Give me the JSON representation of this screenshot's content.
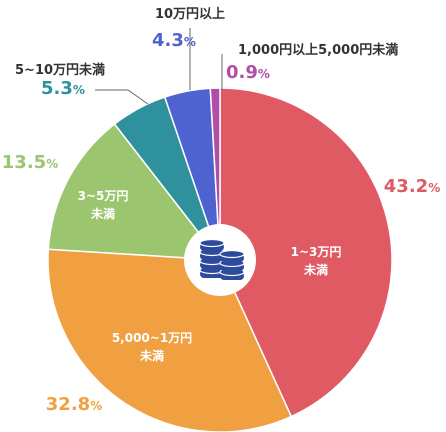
{
  "chart_data": {
    "type": "pie",
    "title": "",
    "unit": "%",
    "slices": [
      {
        "label": "1~3万円未満",
        "label_lines": [
          "1~3万円",
          "未満"
        ],
        "value": 43.2,
        "value_text": "43.2",
        "color": "#e05a63",
        "label_placement": "inside"
      },
      {
        "label": "5,000~1万円未満",
        "label_lines": [
          "5,000~1万円",
          "未満"
        ],
        "value": 32.8,
        "value_text": "32.8",
        "color": "#f0a040",
        "label_placement": "inside"
      },
      {
        "label": "3~5万円未満",
        "label_lines": [
          "3~5万円",
          "未満"
        ],
        "value": 13.5,
        "value_text": "13.5",
        "color": "#9cc56f",
        "label_placement": "inside"
      },
      {
        "label": "5~10万円未満",
        "label_lines": [
          "5~10万円未満"
        ],
        "value": 5.3,
        "value_text": "5.3",
        "color": "#2f919d",
        "label_placement": "outside"
      },
      {
        "label": "10万円以上",
        "label_lines": [
          "10万円以上"
        ],
        "value": 4.3,
        "value_text": "4.3",
        "color": "#4f63d0",
        "label_placement": "outside"
      },
      {
        "label": "1,000円以上5,000円未満",
        "label_lines": [
          "1,000円以上5,000円未満"
        ],
        "value": 0.9,
        "value_text": "0.9",
        "color": "#b04ea8",
        "label_placement": "outside"
      }
    ],
    "center_icon": "coin-stack-icon",
    "center_icon_color": "#2d4a9b"
  }
}
